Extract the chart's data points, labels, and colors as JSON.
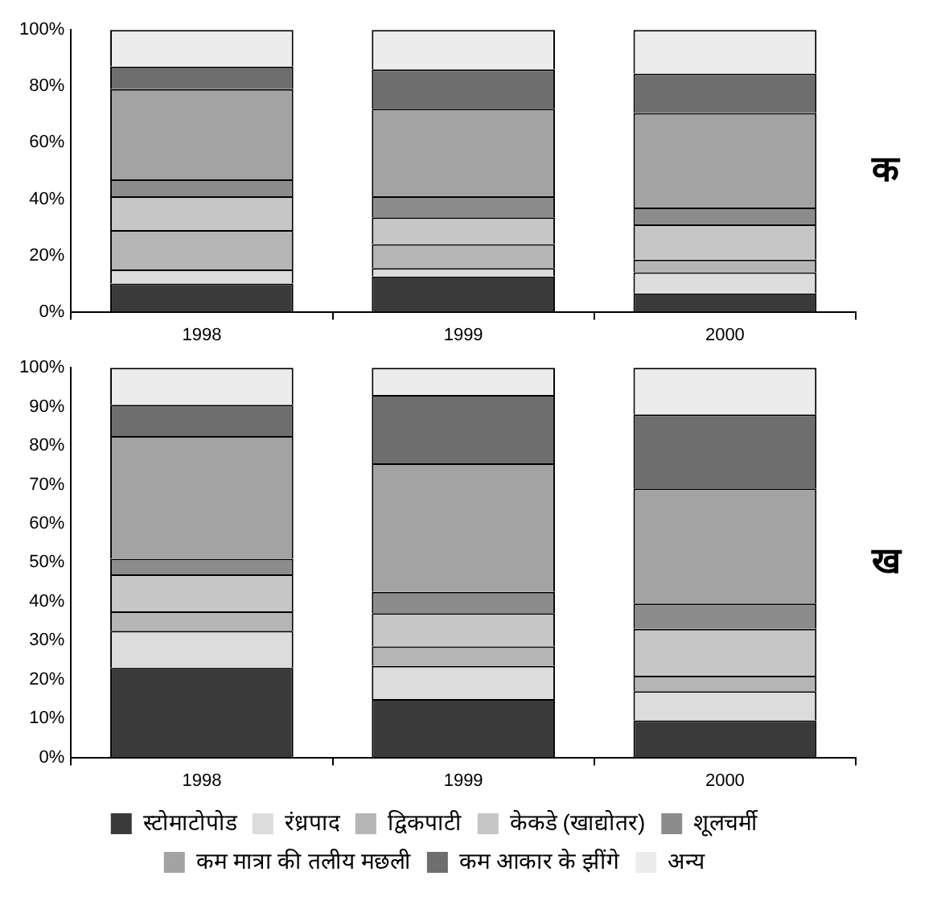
{
  "chart_data": [
    {
      "type": "bar",
      "stacked": true,
      "categories": [
        "1998",
        "1999",
        "2000"
      ],
      "ylim": [
        0,
        100
      ],
      "yticks": [
        {
          "value": 0,
          "label": "0%"
        },
        {
          "value": 20,
          "label": "20%"
        },
        {
          "value": 40,
          "label": "40%"
        },
        {
          "value": 60,
          "label": "60%"
        },
        {
          "value": 80,
          "label": "80%"
        },
        {
          "value": 100,
          "label": "100%"
        }
      ],
      "grid": false,
      "legend": false,
      "annotations": [
        "क"
      ],
      "series": [
        {
          "color": "#3a3a3a",
          "values": [
            10,
            12.5,
            6.5
          ]
        },
        {
          "color": "#dcdcdc",
          "values": [
            5,
            3,
            7.5
          ]
        },
        {
          "color": "#b5b5b5",
          "values": [
            14,
            8.5,
            4.5
          ]
        },
        {
          "color": "#c6c6c6",
          "values": [
            12,
            9.5,
            12.5
          ]
        },
        {
          "color": "#8c8c8c",
          "values": [
            6,
            7.5,
            6
          ]
        },
        {
          "color": "#a3a3a3",
          "values": [
            32,
            31,
            33.5
          ]
        },
        {
          "color": "#6e6e6e",
          "values": [
            8,
            14,
            14
          ]
        },
        {
          "color": "#ececec",
          "values": [
            13,
            14,
            15.5
          ]
        }
      ]
    },
    {
      "type": "bar",
      "stacked": true,
      "categories": [
        "1998",
        "1999",
        "2000"
      ],
      "ylim": [
        0,
        100
      ],
      "yticks": [
        {
          "value": 0,
          "label": "0%"
        },
        {
          "value": 10,
          "label": "10%"
        },
        {
          "value": 20,
          "label": "20%"
        },
        {
          "value": 30,
          "label": "30%"
        },
        {
          "value": 40,
          "label": "40%"
        },
        {
          "value": 50,
          "label": "50%"
        },
        {
          "value": 60,
          "label": "60%"
        },
        {
          "value": 70,
          "label": "70%"
        },
        {
          "value": 80,
          "label": "80%"
        },
        {
          "value": 90,
          "label": "90%"
        },
        {
          "value": 100,
          "label": "100%"
        }
      ],
      "grid": false,
      "legend": "bottom",
      "annotations": [
        "ख"
      ],
      "series": [
        {
          "name": "स्टोमाटोपोड",
          "color": "#3a3a3a",
          "values": [
            23,
            15,
            9.5
          ]
        },
        {
          "name": "रंध्रपाद",
          "color": "#dcdcdc",
          "values": [
            9.5,
            8.5,
            7.5
          ]
        },
        {
          "name": "द्विकपाटी",
          "color": "#b5b5b5",
          "values": [
            5,
            5,
            4
          ]
        },
        {
          "name": "केकडे (खाद्योतर)",
          "color": "#c6c6c6",
          "values": [
            9.5,
            8.5,
            12
          ]
        },
        {
          "name": "शूलचर्मी",
          "color": "#8c8c8c",
          "values": [
            4,
            5.5,
            6.5
          ]
        },
        {
          "name": "कम मात्रा की तलीय मछली",
          "color": "#a3a3a3",
          "values": [
            31.5,
            33,
            29.5
          ]
        },
        {
          "name": "कम आकार के झींगे",
          "color": "#6e6e6e",
          "values": [
            8,
            17.5,
            19
          ]
        },
        {
          "name": "अन्य",
          "color": "#ececec",
          "values": [
            9.5,
            7,
            12
          ]
        }
      ]
    }
  ]
}
